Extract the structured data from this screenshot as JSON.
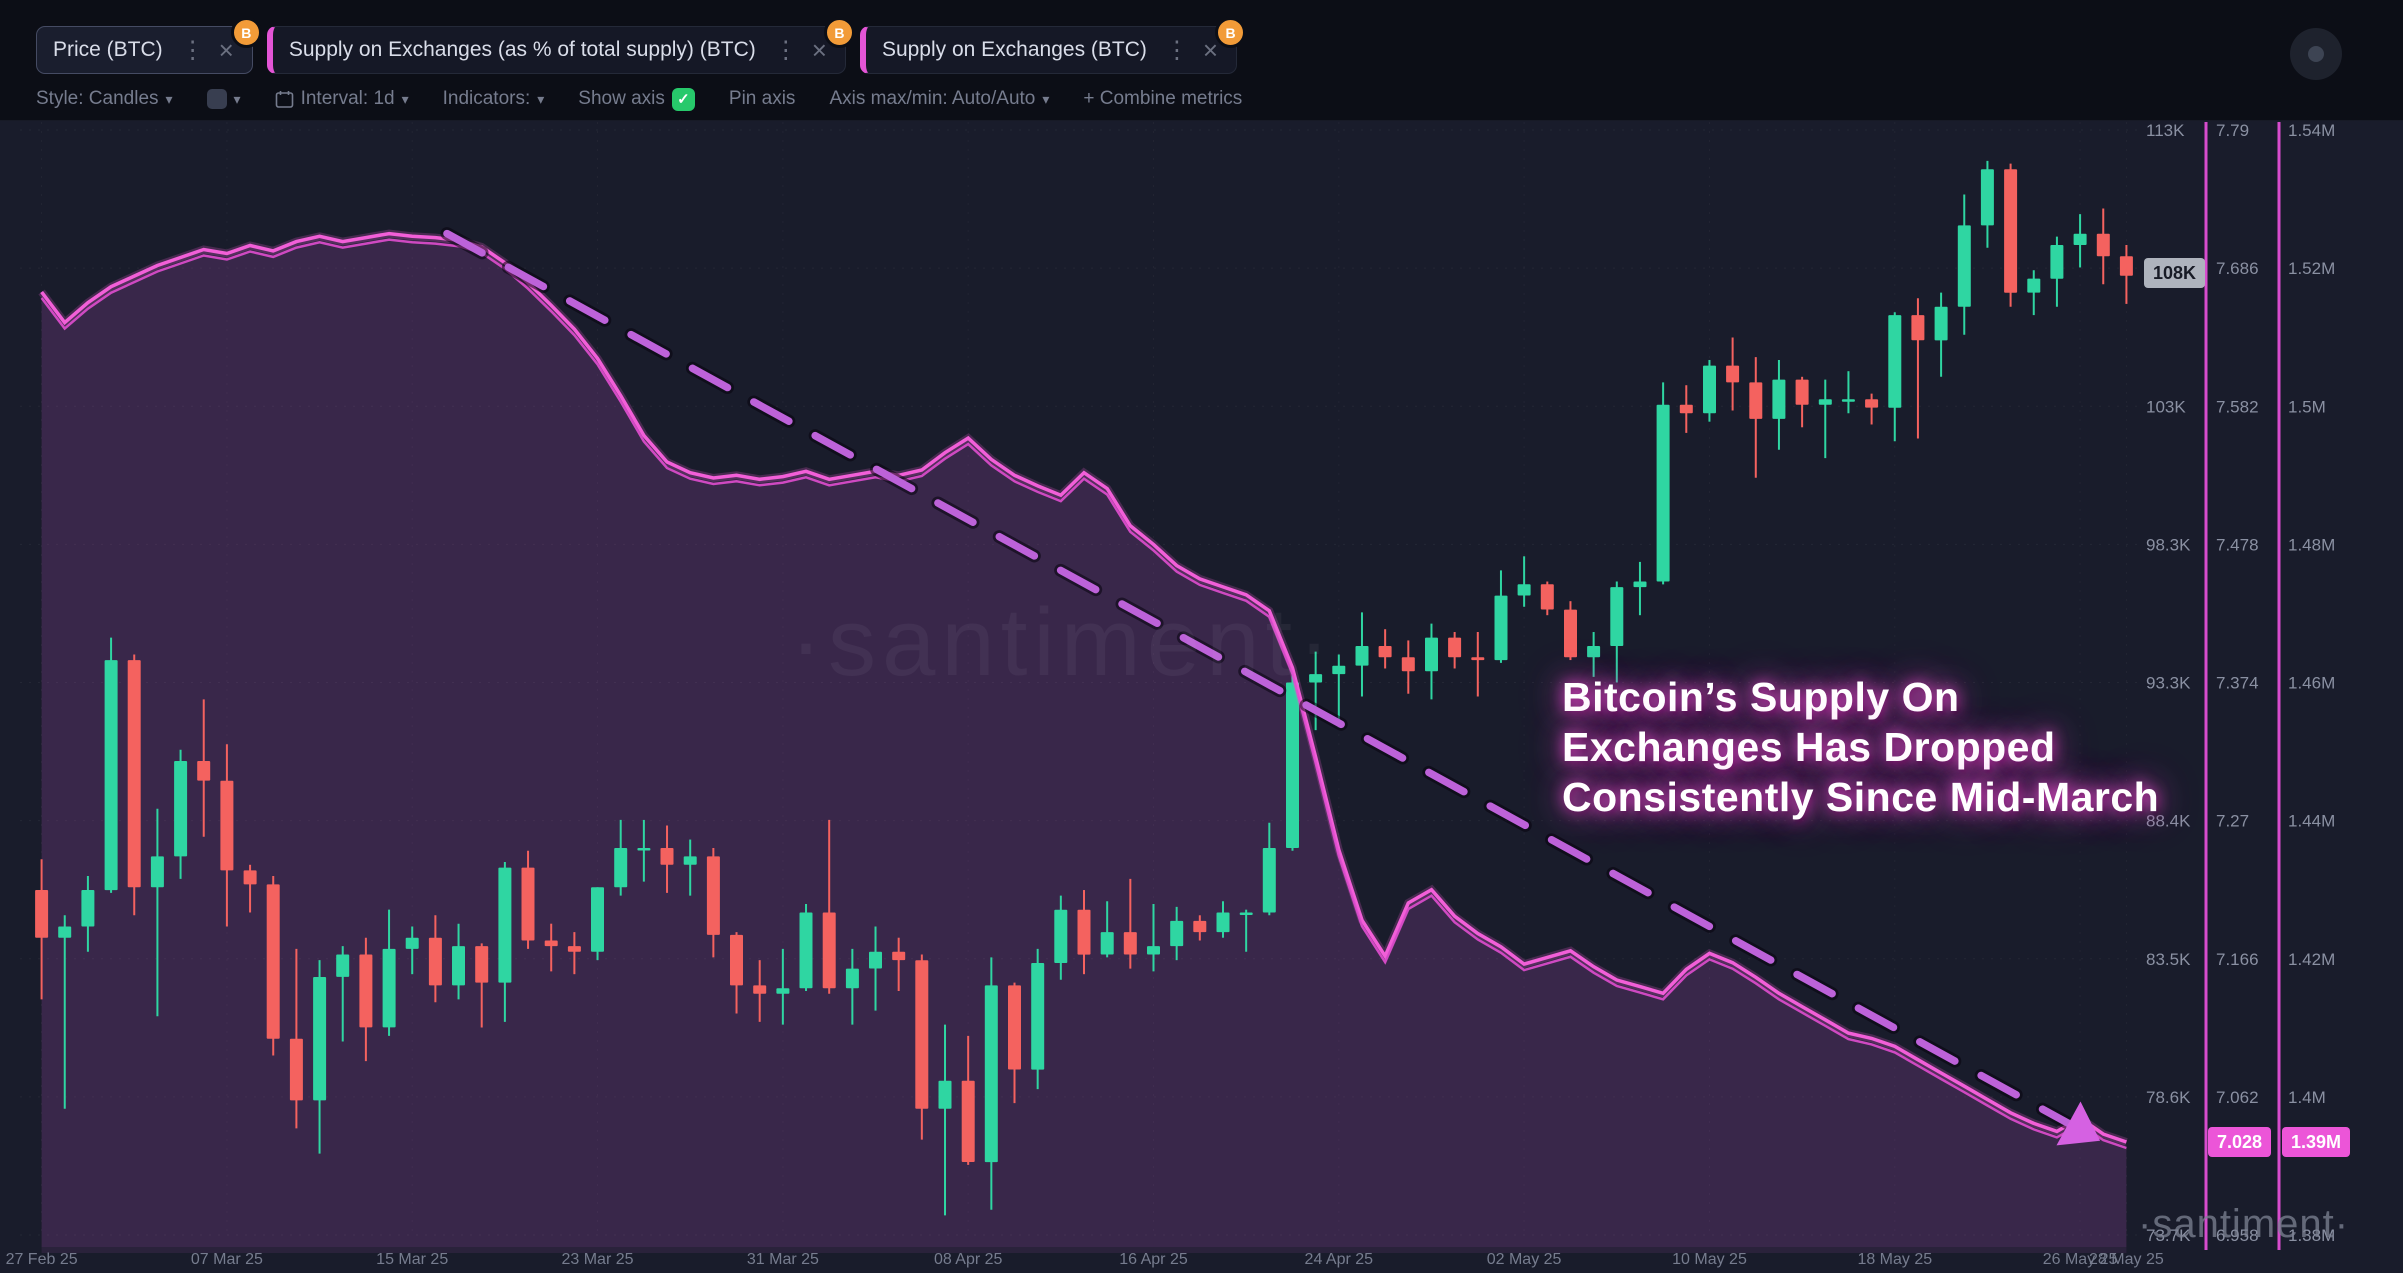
{
  "header": {
    "kebab": "⋮",
    "close": "×",
    "tabs": [
      {
        "label": "Price (BTC)",
        "badge": "B",
        "accent": false,
        "active": true
      },
      {
        "label": "Supply on Exchanges (as % of total supply) (BTC)",
        "badge": "B",
        "accent": true,
        "active": false
      },
      {
        "label": "Supply on Exchanges (BTC)",
        "badge": "B",
        "accent": true,
        "active": false
      }
    ]
  },
  "toolbar": {
    "style_label": "Style: Candles",
    "interval_label": "Interval: 1d",
    "indicators_label": "Indicators:",
    "show_axis_label": "Show axis",
    "checkbox_check": "✓",
    "pin_axis_label": "Pin axis",
    "axis_maxmin_label": "Axis max/min: Auto/Auto",
    "combine_label": "+  Combine metrics",
    "caret": "▾"
  },
  "annotation": {
    "line1": "Bitcoin’s Supply On",
    "line2": "Exchanges Has Dropped",
    "line3": "Consistently Since Mid-March"
  },
  "watermark_center": "·santiment·",
  "watermark_corner": "·santiment·",
  "badges": {
    "price": "108K",
    "pct": "7.028",
    "supply": "1.39M"
  },
  "colors": {
    "background": "#191c2b",
    "header_background": "#0c0e16",
    "candle_up": "#2fd6a2",
    "candle_down": "#f4625f",
    "supply_line": "#f25fd8",
    "supply_line_2": "#e04ecf",
    "supply_fill": "rgba(200,85,205,0.10)",
    "trend": "#bd62d9",
    "trend_arrow": "#d561e2",
    "axis_line": "#e24fd6",
    "axis_text": "#8a90a2",
    "date_text": "#767c8e",
    "accent_pink": "#e455d6",
    "badge_orange": "#f29b38",
    "checkbox_green": "#27c96b"
  },
  "chart_data": {
    "type": "mixed",
    "x_start_date": "27 Feb 25",
    "x_end_date": "28 May 25",
    "x_ticks": [
      {
        "label": "27 Feb 25",
        "index": 0
      },
      {
        "label": "07 Mar 25",
        "index": 8
      },
      {
        "label": "15 Mar 25",
        "index": 16
      },
      {
        "label": "23 Mar 25",
        "index": 24
      },
      {
        "label": "31 Mar 25",
        "index": 32
      },
      {
        "label": "08 Apr 25",
        "index": 40
      },
      {
        "label": "16 Apr 25",
        "index": 48
      },
      {
        "label": "24 Apr 25",
        "index": 56
      },
      {
        "label": "02 May 25",
        "index": 64
      },
      {
        "label": "10 May 25",
        "index": 72
      },
      {
        "label": "18 May 25",
        "index": 80
      },
      {
        "label": "26 May 25",
        "index": 88
      },
      {
        "label": "28 May 25",
        "index": 90
      }
    ],
    "axes": {
      "price": {
        "ticks": [
          "113K",
          "108K",
          "103K",
          "98.3K",
          "93.3K",
          "88.4K",
          "83.5K",
          "78.6K",
          "73.7K"
        ],
        "top_value": 113.1,
        "bottom_value": 73.7,
        "unit": "K USD"
      },
      "pct": {
        "ticks": [
          "7.79",
          "7.686",
          "7.582",
          "7.478",
          "7.374",
          "7.27",
          "7.166",
          "7.062",
          "6.958"
        ],
        "top_value": 7.79,
        "bottom_value": 6.958,
        "unit": "% of total supply"
      },
      "supply_btc": {
        "ticks": [
          "1.54M",
          "1.52M",
          "1.5M",
          "1.48M",
          "1.46M",
          "1.44M",
          "1.42M",
          "1.4M",
          "1.38M"
        ],
        "top_value": 1.54,
        "bottom_value": 1.38,
        "unit": "M BTC"
      }
    },
    "series": [
      {
        "name": "Price (BTC)",
        "type": "candlestick",
        "axis": "price",
        "unit": "K USD",
        "candles": [
          [
            86.0,
            87.1,
            82.1,
            84.3
          ],
          [
            84.3,
            85.1,
            78.2,
            84.7
          ],
          [
            84.7,
            86.5,
            83.8,
            86.0
          ],
          [
            86.0,
            95.0,
            85.9,
            94.2
          ],
          [
            94.2,
            94.4,
            85.1,
            86.1
          ],
          [
            86.1,
            88.9,
            81.5,
            87.2
          ],
          [
            87.2,
            91.0,
            86.4,
            90.6
          ],
          [
            90.6,
            92.8,
            87.9,
            89.9
          ],
          [
            89.9,
            91.2,
            84.7,
            86.7
          ],
          [
            86.7,
            86.9,
            85.2,
            86.2
          ],
          [
            86.2,
            86.5,
            80.1,
            80.7
          ],
          [
            80.7,
            83.9,
            77.5,
            78.5
          ],
          [
            78.5,
            83.5,
            76.6,
            82.9
          ],
          [
            82.9,
            84.0,
            80.6,
            83.7
          ],
          [
            83.7,
            84.3,
            79.9,
            81.1
          ],
          [
            81.1,
            85.3,
            80.8,
            83.9
          ],
          [
            83.9,
            84.7,
            83.0,
            84.3
          ],
          [
            84.3,
            85.1,
            82.0,
            82.6
          ],
          [
            82.6,
            84.8,
            82.1,
            84.0
          ],
          [
            84.0,
            84.1,
            81.1,
            82.7
          ],
          [
            82.7,
            87.0,
            81.3,
            86.8
          ],
          [
            86.8,
            87.4,
            83.9,
            84.2
          ],
          [
            84.2,
            84.8,
            83.1,
            84.0
          ],
          [
            84.0,
            84.5,
            83.0,
            83.8
          ],
          [
            83.8,
            86.1,
            83.5,
            86.1
          ],
          [
            86.1,
            88.5,
            85.8,
            87.5
          ],
          [
            87.5,
            88.5,
            86.3,
            87.5
          ],
          [
            87.5,
            88.3,
            85.9,
            86.9
          ],
          [
            86.9,
            87.8,
            85.8,
            87.2
          ],
          [
            87.2,
            87.5,
            83.6,
            84.4
          ],
          [
            84.4,
            84.5,
            81.6,
            82.6
          ],
          [
            82.6,
            83.5,
            81.3,
            82.3
          ],
          [
            82.3,
            83.9,
            81.2,
            82.5
          ],
          [
            82.5,
            85.5,
            82.4,
            85.2
          ],
          [
            85.2,
            88.5,
            82.3,
            82.5
          ],
          [
            82.5,
            83.9,
            81.2,
            83.2
          ],
          [
            83.2,
            84.7,
            81.7,
            83.8
          ],
          [
            83.8,
            84.3,
            82.4,
            83.5
          ],
          [
            83.5,
            83.7,
            77.1,
            78.2
          ],
          [
            78.2,
            81.2,
            74.4,
            79.2
          ],
          [
            79.2,
            80.8,
            76.2,
            76.3
          ],
          [
            76.3,
            83.6,
            74.6,
            82.6
          ],
          [
            82.6,
            82.7,
            78.4,
            79.6
          ],
          [
            79.6,
            83.9,
            78.9,
            83.4
          ],
          [
            83.4,
            85.8,
            82.8,
            85.3
          ],
          [
            85.3,
            86.0,
            83.0,
            83.7
          ],
          [
            83.7,
            85.6,
            83.6,
            84.5
          ],
          [
            84.5,
            86.4,
            83.2,
            83.7
          ],
          [
            83.7,
            85.5,
            83.1,
            84.0
          ],
          [
            84.0,
            85.4,
            83.5,
            84.9
          ],
          [
            84.9,
            85.1,
            84.2,
            84.5
          ],
          [
            84.5,
            85.6,
            84.3,
            85.2
          ],
          [
            85.2,
            85.3,
            83.8,
            85.2
          ],
          [
            85.2,
            88.4,
            85.1,
            87.5
          ],
          [
            87.5,
            93.8,
            87.4,
            93.4
          ],
          [
            93.4,
            94.5,
            91.7,
            93.7
          ],
          [
            93.7,
            94.4,
            91.8,
            94.0
          ],
          [
            94.0,
            95.9,
            92.9,
            94.7
          ],
          [
            94.7,
            95.3,
            93.9,
            94.3
          ],
          [
            94.3,
            94.9,
            93.0,
            93.8
          ],
          [
            93.8,
            95.5,
            92.8,
            95.0
          ],
          [
            95.0,
            95.2,
            93.9,
            94.3
          ],
          [
            94.3,
            95.2,
            92.9,
            94.2
          ],
          [
            94.2,
            97.4,
            94.1,
            96.5
          ],
          [
            96.5,
            97.9,
            96.1,
            96.9
          ],
          [
            96.9,
            97.0,
            95.8,
            96.0
          ],
          [
            96.0,
            96.3,
            94.2,
            94.3
          ],
          [
            94.3,
            95.2,
            93.6,
            94.7
          ],
          [
            94.7,
            97.0,
            93.4,
            96.8
          ],
          [
            96.8,
            97.7,
            95.8,
            97.0
          ],
          [
            97.0,
            104.1,
            96.9,
            103.3
          ],
          [
            103.3,
            104.0,
            102.3,
            103.0
          ],
          [
            103.0,
            104.9,
            102.7,
            104.7
          ],
          [
            104.7,
            105.7,
            103.1,
            104.1
          ],
          [
            104.1,
            105.0,
            100.7,
            102.8
          ],
          [
            102.8,
            104.9,
            101.7,
            104.2
          ],
          [
            104.2,
            104.3,
            102.5,
            103.3
          ],
          [
            103.3,
            104.2,
            101.4,
            103.5
          ],
          [
            103.5,
            104.5,
            103.0,
            103.5
          ],
          [
            103.5,
            103.7,
            102.6,
            103.2
          ],
          [
            103.2,
            106.6,
            102.0,
            106.5
          ],
          [
            106.5,
            107.1,
            102.1,
            105.6
          ],
          [
            105.6,
            107.3,
            104.3,
            106.8
          ],
          [
            106.8,
            110.8,
            105.8,
            109.7
          ],
          [
            109.7,
            112.0,
            108.9,
            111.7
          ],
          [
            111.7,
            111.9,
            106.8,
            107.3
          ],
          [
            107.3,
            108.1,
            106.5,
            107.8
          ],
          [
            107.8,
            109.3,
            106.8,
            109.0
          ],
          [
            109.0,
            110.1,
            108.2,
            109.4
          ],
          [
            109.4,
            110.3,
            107.6,
            108.6
          ],
          [
            108.6,
            109.0,
            106.9,
            107.9
          ]
        ]
      },
      {
        "name": "Supply on Exchanges (as % of total supply) (BTC)",
        "type": "line",
        "axis": "pct",
        "unit": "%",
        "values": [
          7.668,
          7.645,
          7.66,
          7.672,
          7.68,
          7.688,
          7.694,
          7.7,
          7.697,
          7.703,
          7.699,
          7.706,
          7.71,
          7.706,
          7.709,
          7.712,
          7.71,
          7.709,
          7.707,
          7.702,
          7.69,
          7.675,
          7.658,
          7.64,
          7.618,
          7.59,
          7.56,
          7.54,
          7.532,
          7.528,
          7.53,
          7.527,
          7.529,
          7.533,
          7.527,
          7.53,
          7.533,
          7.53,
          7.534,
          7.547,
          7.558,
          7.542,
          7.53,
          7.522,
          7.515,
          7.532,
          7.52,
          7.492,
          7.478,
          7.462,
          7.452,
          7.446,
          7.44,
          7.428,
          7.385,
          7.318,
          7.248,
          7.195,
          7.168,
          7.208,
          7.218,
          7.198,
          7.185,
          7.175,
          7.162,
          7.167,
          7.172,
          7.16,
          7.15,
          7.145,
          7.14,
          7.158,
          7.17,
          7.163,
          7.152,
          7.14,
          7.13,
          7.12,
          7.11,
          7.106,
          7.1,
          7.09,
          7.08,
          7.07,
          7.06,
          7.05,
          7.042,
          7.036,
          7.046,
          7.034,
          7.028
        ]
      },
      {
        "name": "Supply on Exchanges (BTC)",
        "type": "line",
        "axis": "supply_btc",
        "unit": "M BTC",
        "derived_from_pct_factor": 0.1978,
        "current_value": 1.39
      }
    ],
    "trendline": {
      "style": "dashed",
      "start_index": 17.5,
      "start_pct": 7.712,
      "end_index": 87.5,
      "end_pct": 7.042
    },
    "current": {
      "price_value": 108,
      "price_label": "108K",
      "pct_value": 7.028,
      "pct_label": "7.028",
      "supply_label": "1.39M"
    },
    "title": "Bitcoin’s Supply On Exchanges Has Dropped Consistently Since Mid-March",
    "grid": "dotted",
    "legend_position": "tabs-top"
  }
}
